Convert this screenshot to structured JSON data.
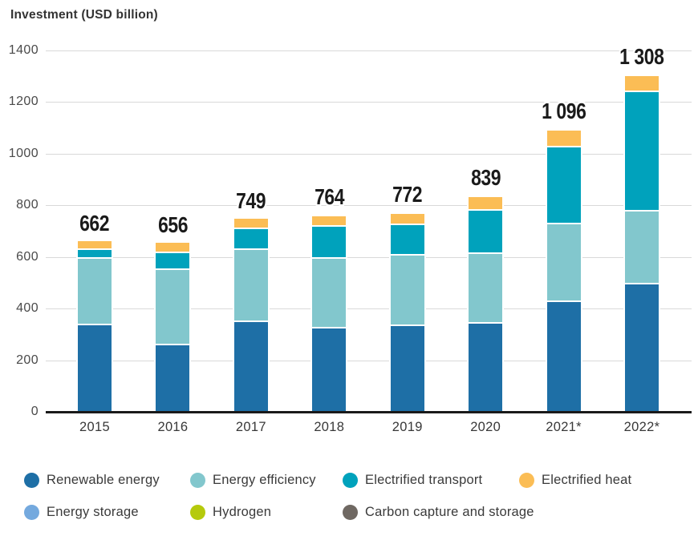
{
  "page": {
    "title": "Investment (USD billion)"
  },
  "chart_data": {
    "type": "bar",
    "stacked": true,
    "title": "Investment (USD billion)",
    "categories": [
      "2015",
      "2016",
      "2017",
      "2018",
      "2019",
      "2020",
      "2021*",
      "2022*"
    ],
    "series": [
      {
        "name": "Renewable energy",
        "color": "#1e6fa6",
        "values": [
          335,
          259,
          349,
          324,
          333,
          342,
          425,
          493
        ]
      },
      {
        "name": "Energy efficiency",
        "color": "#82c7cd",
        "values": [
          258,
          290,
          278,
          270,
          273,
          270,
          301,
          284
        ]
      },
      {
        "name": "Electrified transport",
        "color": "#00a2bc",
        "values": [
          34,
          67,
          82,
          123,
          119,
          169,
          298,
          461
        ]
      },
      {
        "name": "Electrified heat",
        "color": "#fbbd55",
        "values": [
          35,
          40,
          40,
          41,
          43,
          53,
          65,
          62
        ]
      },
      {
        "name": "Energy storage",
        "color": "#74a9de",
        "values": [
          0,
          0,
          0,
          6,
          4,
          5,
          7,
          8
        ]
      },
      {
        "name": "Hydrogen",
        "color": "#b5ca0c",
        "values": [
          0,
          0,
          0,
          0,
          0,
          0,
          0,
          0
        ]
      },
      {
        "name": "Carbon capture and storage",
        "color": "#6f6862",
        "values": [
          0,
          0,
          0,
          0,
          0,
          0,
          0,
          0
        ]
      }
    ],
    "bar_total_labels": [
      "662",
      "656",
      "749",
      "764",
      "772",
      "839",
      "1 096",
      "1 308"
    ],
    "yticks": [
      "1400",
      "1200",
      "1000",
      "800",
      "600",
      "400",
      "200",
      "0"
    ],
    "ylim": [
      0,
      1400
    ],
    "xlabel": "",
    "ylabel": "Investment (USD billion)",
    "grid": "horizontal",
    "legend_position": "bottom",
    "grid_color": "#d9d9d9",
    "axis_color": "#1a1a1a"
  }
}
